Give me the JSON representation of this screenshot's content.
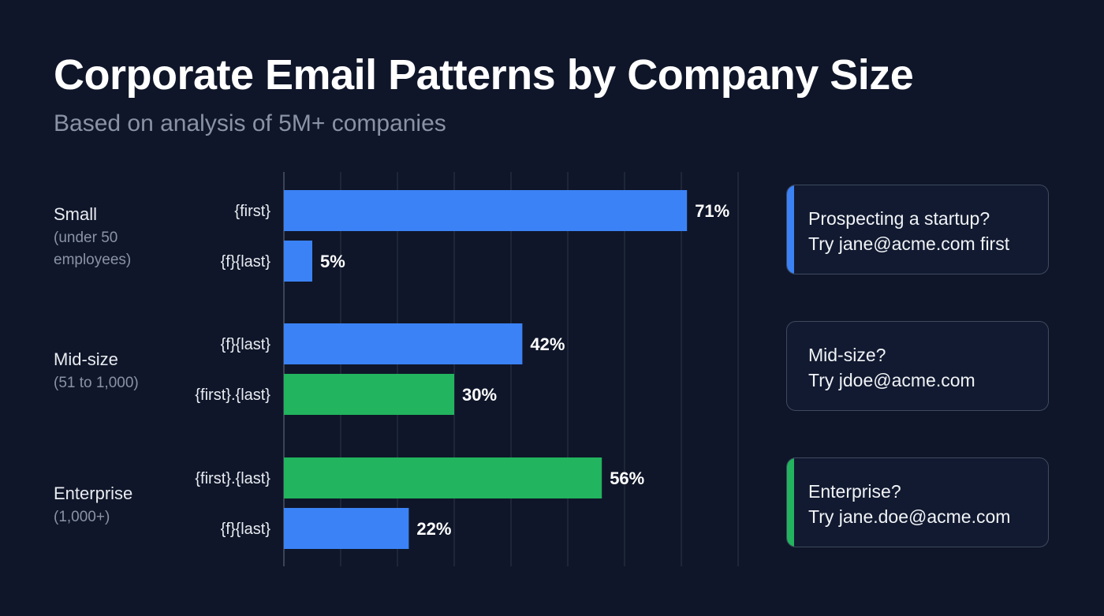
{
  "title": "Corporate Email Patterns by Company Size",
  "subtitle": "Based on analysis of 5M+ companies",
  "colors": {
    "background": "#0f1629",
    "blue": "#3b82f6",
    "green": "#22b45e",
    "grid": "#2e3648"
  },
  "chart_data": {
    "type": "bar",
    "orientation": "horizontal",
    "xlim": [
      0,
      80
    ],
    "grid": true,
    "groups": [
      {
        "label": "Small",
        "sublabel": [
          "(under 50",
          "employees)"
        ],
        "bars": [
          {
            "pattern": "{first}",
            "value": 71,
            "label": "71%",
            "color": "blue"
          },
          {
            "pattern": "{f}{last}",
            "value": 5,
            "label": "5%",
            "color": "blue"
          }
        ]
      },
      {
        "label": "Mid-size",
        "sublabel": [
          "(51 to 1,000)"
        ],
        "bars": [
          {
            "pattern": "{f}{last}",
            "value": 42,
            "label": "42%",
            "color": "blue"
          },
          {
            "pattern": "{first}.{last}",
            "value": 30,
            "label": "30%",
            "color": "green"
          }
        ]
      },
      {
        "label": "Enterprise",
        "sublabel": [
          "(1,000+)"
        ],
        "bars": [
          {
            "pattern": "{first}.{last}",
            "value": 56,
            "label": "56%",
            "color": "green"
          },
          {
            "pattern": "{f}{last}",
            "value": 22,
            "label": "22%",
            "color": "blue"
          }
        ]
      }
    ]
  },
  "cards": [
    {
      "line1": "Prospecting a startup?",
      "line2": "Try jane@acme.com first",
      "accent": "blue"
    },
    {
      "line1": "Mid-size?",
      "line2": "Try jdoe@acme.com",
      "accent": null
    },
    {
      "line1": "Enterprise?",
      "line2": "Try jane.doe@acme.com",
      "accent": "green"
    }
  ]
}
